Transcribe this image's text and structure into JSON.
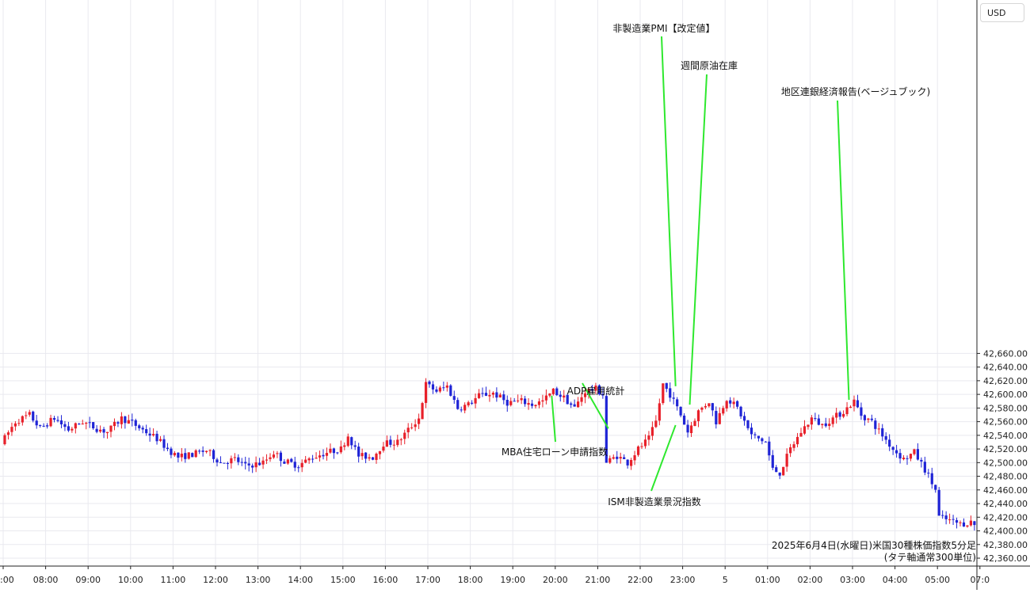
{
  "currency": "USD",
  "caption": {
    "line1": "2025年6月4日(水曜日)米国30種株価指数5分足",
    "line2": "(タテ軸通常300単位)"
  },
  "chart_data": {
    "type": "candlestick",
    "title": "",
    "ylabel": "USD",
    "ylim": [
      42350,
      42690
    ],
    "y_ticks": [
      42360,
      42380,
      42400,
      42420,
      42440,
      42460,
      42480,
      42500,
      42520,
      42540,
      42560,
      42580,
      42600,
      42620,
      42640,
      42660
    ],
    "y_tick_labels": [
      "42,360.00",
      "42,380.00",
      "42,400.00",
      "42,420.00",
      "42,440.00",
      "42,460.00",
      "42,480.00",
      "42,500.00",
      "42,520.00",
      "42,540.00",
      "42,560.00",
      "42,580.00",
      "42,600.00",
      "42,620.00",
      "42,640.00",
      "42,660.00"
    ],
    "x_ticks": [
      {
        "label": ":00",
        "t": 0
      },
      {
        "label": "08:00",
        "t": 60
      },
      {
        "label": "09:00",
        "t": 120
      },
      {
        "label": "10:00",
        "t": 180
      },
      {
        "label": "11:00",
        "t": 240
      },
      {
        "label": "12:00",
        "t": 300
      },
      {
        "label": "13:00",
        "t": 360
      },
      {
        "label": "14:00",
        "t": 420
      },
      {
        "label": "15:00",
        "t": 480
      },
      {
        "label": "16:00",
        "t": 540
      },
      {
        "label": "17:00",
        "t": 600
      },
      {
        "label": "18:00",
        "t": 660
      },
      {
        "label": "19:00",
        "t": 720
      },
      {
        "label": "20:00",
        "t": 780
      },
      {
        "label": "21:00",
        "t": 840
      },
      {
        "label": "22:00",
        "t": 900
      },
      {
        "label": "23:00",
        "t": 960
      },
      {
        "label": "5",
        "t": 1020
      },
      {
        "label": "01:00",
        "t": 1080
      },
      {
        "label": "02:00",
        "t": 1140
      },
      {
        "label": "03:00",
        "t": 1200
      },
      {
        "label": "04:00",
        "t": 1260
      },
      {
        "label": "05:00",
        "t": 1320
      },
      {
        "label": "07:0",
        "t": 1380
      }
    ],
    "anchors": [
      {
        "t": 0,
        "v": 42528
      },
      {
        "t": 20,
        "v": 42560
      },
      {
        "t": 40,
        "v": 42570
      },
      {
        "t": 55,
        "v": 42550
      },
      {
        "t": 75,
        "v": 42565
      },
      {
        "t": 95,
        "v": 42548
      },
      {
        "t": 115,
        "v": 42560
      },
      {
        "t": 135,
        "v": 42550
      },
      {
        "t": 150,
        "v": 42545
      },
      {
        "t": 170,
        "v": 42565
      },
      {
        "t": 185,
        "v": 42558
      },
      {
        "t": 200,
        "v": 42548
      },
      {
        "t": 220,
        "v": 42535
      },
      {
        "t": 235,
        "v": 42520
      },
      {
        "t": 250,
        "v": 42508
      },
      {
        "t": 270,
        "v": 42512
      },
      {
        "t": 290,
        "v": 42518
      },
      {
        "t": 310,
        "v": 42500
      },
      {
        "t": 330,
        "v": 42505
      },
      {
        "t": 345,
        "v": 42495
      },
      {
        "t": 370,
        "v": 42500
      },
      {
        "t": 385,
        "v": 42515
      },
      {
        "t": 400,
        "v": 42502
      },
      {
        "t": 420,
        "v": 42496
      },
      {
        "t": 440,
        "v": 42508
      },
      {
        "t": 460,
        "v": 42515
      },
      {
        "t": 480,
        "v": 42520
      },
      {
        "t": 490,
        "v": 42540
      },
      {
        "t": 505,
        "v": 42510
      },
      {
        "t": 525,
        "v": 42508
      },
      {
        "t": 540,
        "v": 42528
      },
      {
        "t": 560,
        "v": 42530
      },
      {
        "t": 575,
        "v": 42548
      },
      {
        "t": 590,
        "v": 42565
      },
      {
        "t": 600,
        "v": 42615
      },
      {
        "t": 615,
        "v": 42605
      },
      {
        "t": 630,
        "v": 42612
      },
      {
        "t": 645,
        "v": 42580
      },
      {
        "t": 660,
        "v": 42585
      },
      {
        "t": 675,
        "v": 42598
      },
      {
        "t": 695,
        "v": 42602
      },
      {
        "t": 715,
        "v": 42588
      },
      {
        "t": 735,
        "v": 42590
      },
      {
        "t": 750,
        "v": 42585
      },
      {
        "t": 765,
        "v": 42590
      },
      {
        "t": 780,
        "v": 42605
      },
      {
        "t": 795,
        "v": 42595
      },
      {
        "t": 810,
        "v": 42580
      },
      {
        "t": 825,
        "v": 42605
      },
      {
        "t": 840,
        "v": 42608
      },
      {
        "t": 850,
        "v": 42600
      },
      {
        "t": 855,
        "v": 42500
      },
      {
        "t": 870,
        "v": 42510
      },
      {
        "t": 885,
        "v": 42500
      },
      {
        "t": 900,
        "v": 42520
      },
      {
        "t": 915,
        "v": 42535
      },
      {
        "t": 925,
        "v": 42560
      },
      {
        "t": 935,
        "v": 42615
      },
      {
        "t": 945,
        "v": 42600
      },
      {
        "t": 960,
        "v": 42570
      },
      {
        "t": 970,
        "v": 42545
      },
      {
        "t": 985,
        "v": 42575
      },
      {
        "t": 1000,
        "v": 42590
      },
      {
        "t": 1010,
        "v": 42560
      },
      {
        "t": 1025,
        "v": 42595
      },
      {
        "t": 1040,
        "v": 42580
      },
      {
        "t": 1060,
        "v": 42540
      },
      {
        "t": 1080,
        "v": 42530
      },
      {
        "t": 1090,
        "v": 42490
      },
      {
        "t": 1100,
        "v": 42485
      },
      {
        "t": 1115,
        "v": 42520
      },
      {
        "t": 1130,
        "v": 42545
      },
      {
        "t": 1145,
        "v": 42565
      },
      {
        "t": 1160,
        "v": 42555
      },
      {
        "t": 1175,
        "v": 42565
      },
      {
        "t": 1190,
        "v": 42575
      },
      {
        "t": 1205,
        "v": 42590
      },
      {
        "t": 1215,
        "v": 42570
      },
      {
        "t": 1230,
        "v": 42560
      },
      {
        "t": 1245,
        "v": 42540
      },
      {
        "t": 1260,
        "v": 42520
      },
      {
        "t": 1275,
        "v": 42505
      },
      {
        "t": 1290,
        "v": 42515
      },
      {
        "t": 1305,
        "v": 42490
      },
      {
        "t": 1320,
        "v": 42460
      },
      {
        "t": 1325,
        "v": 42420
      },
      {
        "t": 1340,
        "v": 42415
      },
      {
        "t": 1355,
        "v": 42410
      },
      {
        "t": 1370,
        "v": 42413
      },
      {
        "t": 1385,
        "v": 42403
      }
    ],
    "up_color": "#e8202a",
    "down_color": "#1f24d6",
    "annotation_color": "#2ee82e",
    "annotations": [
      {
        "label": "非製造業PMI【改定値】",
        "t": 950,
        "v": 42612
      },
      {
        "label": "週間原油在庫",
        "t": 970,
        "v": 42585
      },
      {
        "label": "地区連銀経済報告(ベージュブック)",
        "t": 1195,
        "v": 42592
      },
      {
        "label": "ADP雇用統計",
        "t": 855,
        "v": 42550
      },
      {
        "label": "MBA住宅ローン申請指数",
        "t": 775,
        "v": 42598
      },
      {
        "label": "ISM非製造業景況指数",
        "t": 950,
        "v": 42555
      }
    ]
  }
}
